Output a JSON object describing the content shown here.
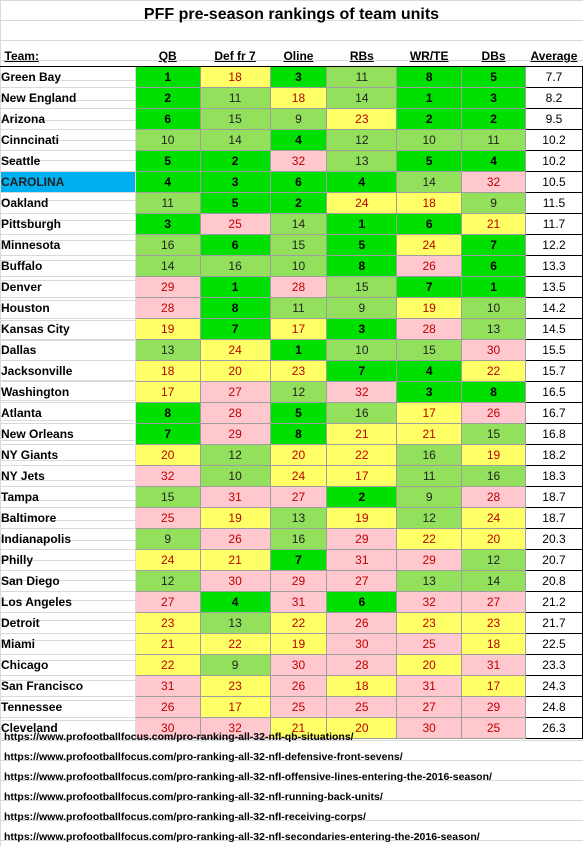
{
  "title": "PFF pre-season rankings of team units",
  "headers": [
    "Team:",
    "QB",
    "Def fr 7",
    "Oline",
    "RBs",
    "WR/TE",
    "DBs",
    "Average"
  ],
  "highlight_team": "CAROLINA",
  "colors": {
    "top_green": "#00e000",
    "light_green": "#92e05b",
    "yellow": "#ffff66",
    "pink": "#ffc7ce",
    "highlight_blue": "#00b0f0",
    "rank_text_red": "#c00000"
  },
  "rows": [
    {
      "team": "Green Bay",
      "ranks": [
        1,
        18,
        3,
        11,
        8,
        5
      ],
      "avg": "7.7"
    },
    {
      "team": "New England",
      "ranks": [
        2,
        11,
        18,
        14,
        1,
        3
      ],
      "avg": "8.2"
    },
    {
      "team": "Arizona",
      "ranks": [
        6,
        15,
        9,
        23,
        2,
        2
      ],
      "avg": "9.5"
    },
    {
      "team": "Cinncinati",
      "ranks": [
        10,
        14,
        4,
        12,
        10,
        11
      ],
      "avg": "10.2"
    },
    {
      "team": "Seattle",
      "ranks": [
        5,
        2,
        32,
        13,
        5,
        4
      ],
      "avg": "10.2"
    },
    {
      "team": "CAROLINA",
      "ranks": [
        4,
        3,
        6,
        4,
        14,
        32
      ],
      "avg": "10.5"
    },
    {
      "team": "Oakland",
      "ranks": [
        11,
        5,
        2,
        24,
        18,
        9
      ],
      "avg": "11.5"
    },
    {
      "team": "Pittsburgh",
      "ranks": [
        3,
        25,
        14,
        1,
        6,
        21
      ],
      "avg": "11.7"
    },
    {
      "team": "Minnesota",
      "ranks": [
        16,
        6,
        15,
        5,
        24,
        7
      ],
      "avg": "12.2"
    },
    {
      "team": "Buffalo",
      "ranks": [
        14,
        16,
        10,
        8,
        26,
        6
      ],
      "avg": "13.3"
    },
    {
      "team": "Denver",
      "ranks": [
        29,
        1,
        28,
        15,
        7,
        1
      ],
      "avg": "13.5"
    },
    {
      "team": "Houston",
      "ranks": [
        28,
        8,
        11,
        9,
        19,
        10
      ],
      "avg": "14.2"
    },
    {
      "team": "Kansas City",
      "ranks": [
        19,
        7,
        17,
        3,
        28,
        13
      ],
      "avg": "14.5"
    },
    {
      "team": "Dallas",
      "ranks": [
        13,
        24,
        1,
        10,
        15,
        30
      ],
      "avg": "15.5"
    },
    {
      "team": "Jacksonville",
      "ranks": [
        18,
        20,
        23,
        7,
        4,
        22
      ],
      "avg": "15.7"
    },
    {
      "team": "Washington",
      "ranks": [
        17,
        27,
        12,
        32,
        3,
        8
      ],
      "avg": "16.5"
    },
    {
      "team": "Atlanta",
      "ranks": [
        8,
        28,
        5,
        16,
        17,
        26
      ],
      "avg": "16.7"
    },
    {
      "team": "New Orleans",
      "ranks": [
        7,
        29,
        8,
        21,
        21,
        15
      ],
      "avg": "16.8"
    },
    {
      "team": "NY Giants",
      "ranks": [
        20,
        12,
        20,
        22,
        16,
        19
      ],
      "avg": "18.2"
    },
    {
      "team": "NY Jets",
      "ranks": [
        32,
        10,
        24,
        17,
        11,
        16
      ],
      "avg": "18.3"
    },
    {
      "team": "Tampa",
      "ranks": [
        15,
        31,
        27,
        2,
        9,
        28
      ],
      "avg": "18.7"
    },
    {
      "team": "Baltimore",
      "ranks": [
        25,
        19,
        13,
        19,
        12,
        24
      ],
      "avg": "18.7"
    },
    {
      "team": "Indianapolis",
      "ranks": [
        9,
        26,
        16,
        29,
        22,
        20
      ],
      "avg": "20.3"
    },
    {
      "team": "Philly",
      "ranks": [
        24,
        21,
        7,
        31,
        29,
        12
      ],
      "avg": "20.7"
    },
    {
      "team": "San Diego",
      "ranks": [
        12,
        30,
        29,
        27,
        13,
        14
      ],
      "avg": "20.8"
    },
    {
      "team": "Los Angeles",
      "ranks": [
        27,
        4,
        31,
        6,
        32,
        27
      ],
      "avg": "21.2"
    },
    {
      "team": "Detroit",
      "ranks": [
        23,
        13,
        22,
        26,
        23,
        23
      ],
      "avg": "21.7"
    },
    {
      "team": "Miami",
      "ranks": [
        21,
        22,
        19,
        30,
        25,
        18
      ],
      "avg": "22.5"
    },
    {
      "team": "Chicago",
      "ranks": [
        22,
        9,
        30,
        28,
        20,
        31
      ],
      "avg": "23.3"
    },
    {
      "team": "San Francisco",
      "ranks": [
        31,
        23,
        26,
        18,
        31,
        17
      ],
      "avg": "24.3"
    },
    {
      "team": "Tennessee",
      "ranks": [
        26,
        17,
        25,
        25,
        27,
        29
      ],
      "avg": "24.8"
    },
    {
      "team": "Cleveland",
      "ranks": [
        30,
        32,
        21,
        20,
        30,
        25
      ],
      "avg": "26.3"
    }
  ],
  "links": [
    "https://www.profootballfocus.com/pro-ranking-all-32-nfl-qb-situations/",
    "https://www.profootballfocus.com/pro-ranking-all-32-nfl-defensive-front-sevens/",
    "https://www.profootballfocus.com/pro-ranking-all-32-nfl-offensive-lines-entering-the-2016-season/",
    "https://www.profootballfocus.com/pro-ranking-all-32-nfl-running-back-units/",
    "https://www.profootballfocus.com/pro-ranking-all-32-nfl-receiving-corps/",
    "https://www.profootballfocus.com/pro-ranking-all-32-nfl-secondaries-entering-the-2016-season/"
  ]
}
